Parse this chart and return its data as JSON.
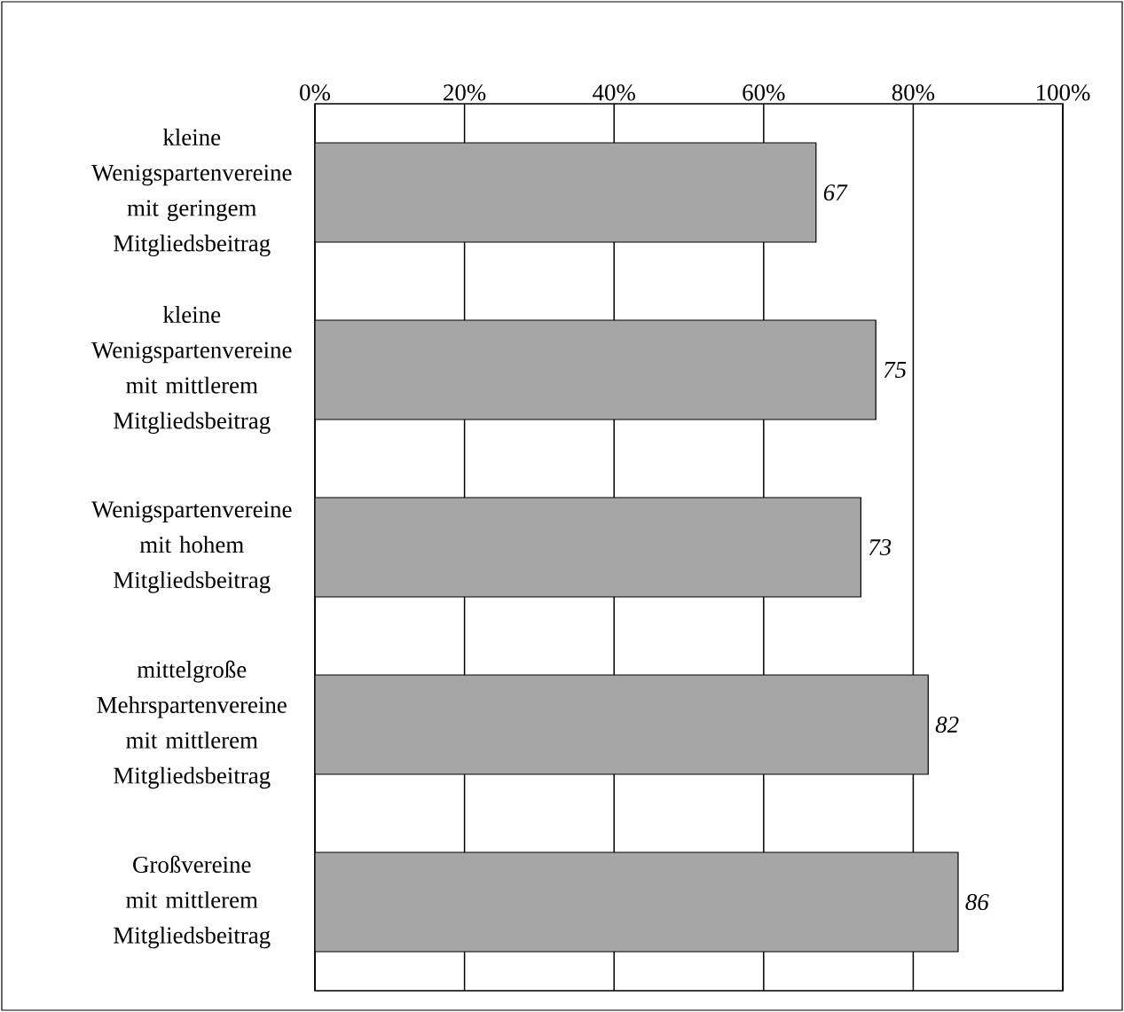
{
  "chart_data": {
    "type": "bar",
    "orientation": "horizontal",
    "categories": [
      "kleine Wenigspartenvereine mit geringem Mitgliedsbeitrag",
      "kleine Wenigspartenvereine mit mittlerem Mitgliedsbeitrag",
      "Wenigspartenvereine mit hohem Mitgliedsbeitrag",
      "mittelgroße Mehrspartenvereine mit mittlerem Mitgliedsbeitrag",
      "Großvereine mit mittlerem Mitgliedsbeitrag"
    ],
    "values": [
      67,
      75,
      73,
      82,
      86
    ],
    "color": "#a6a6a6",
    "xlim": [
      0,
      100
    ],
    "xticks": [
      {
        "value": 0,
        "label": "0%"
      },
      {
        "value": 20,
        "label": "20%"
      },
      {
        "value": 40,
        "label": "40%"
      },
      {
        "value": 60,
        "label": "60%"
      },
      {
        "value": 80,
        "label": "80%"
      },
      {
        "value": 100,
        "label": "100%"
      }
    ],
    "grid": "x",
    "data_labels": true
  }
}
